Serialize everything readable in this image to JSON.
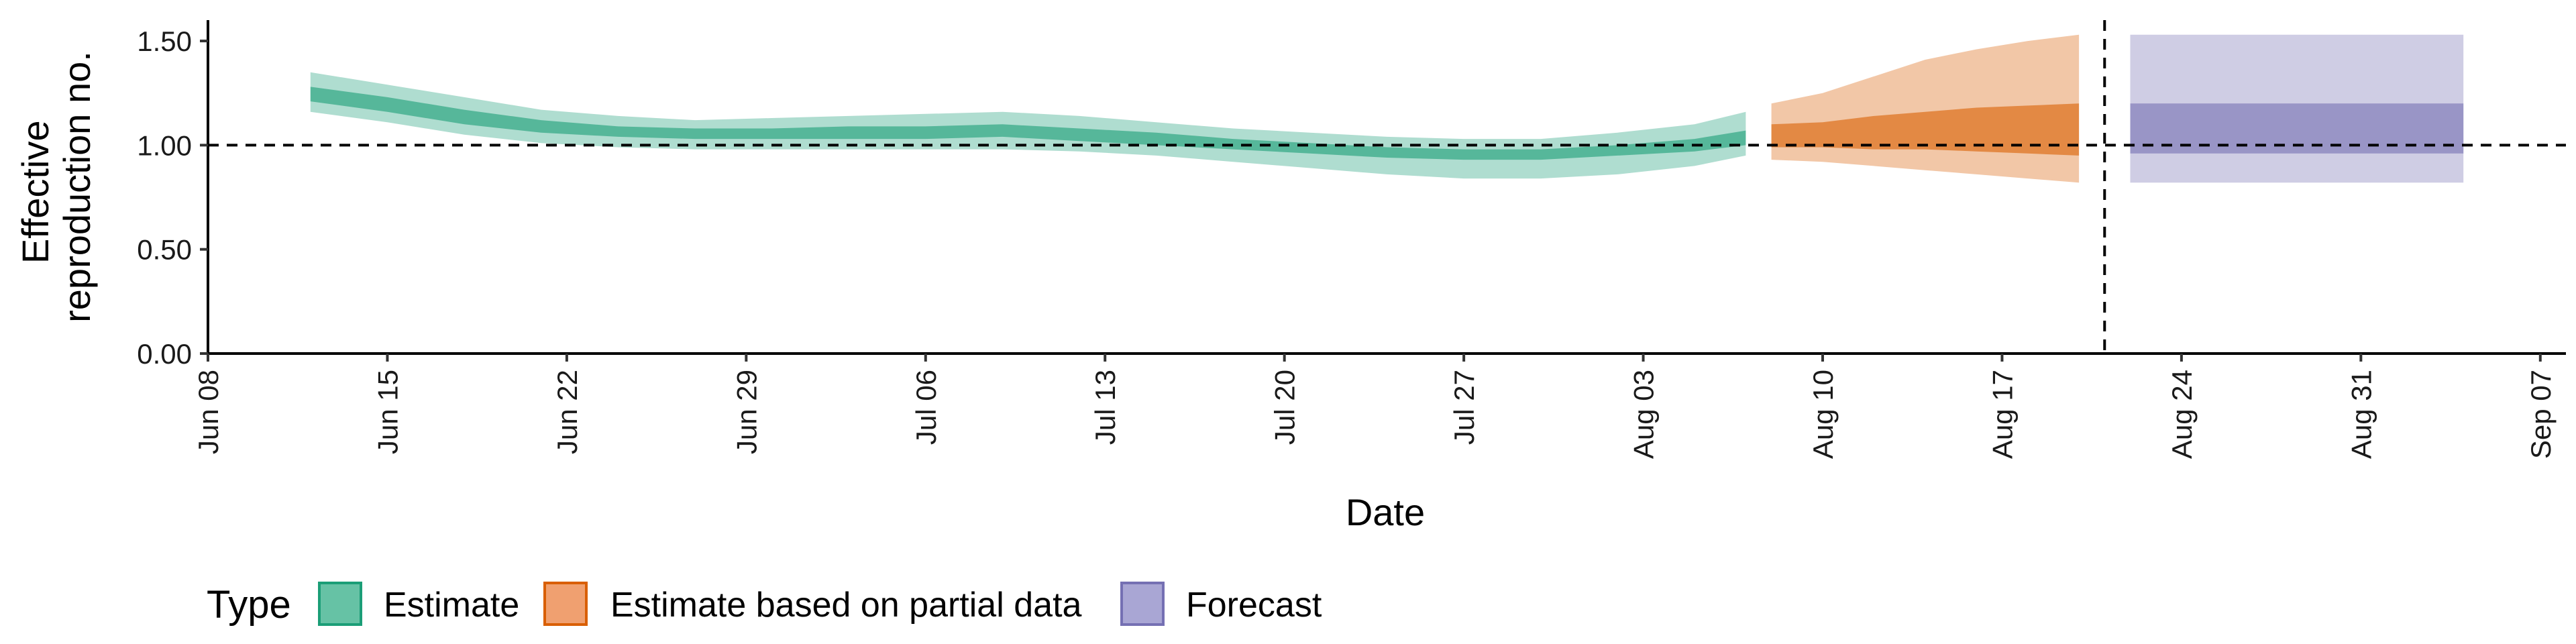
{
  "chart_data": {
    "type": "area",
    "xlabel": "Date",
    "ylabel_lines": [
      "Effective",
      "reproduction no."
    ],
    "ylim": [
      0,
      1.6
    ],
    "y_ticks": [
      0,
      0.5,
      1.0,
      1.5
    ],
    "y_tick_labels": [
      "0.00",
      "0.50",
      "1.00",
      "1.50"
    ],
    "xlim": [
      "2020-06-08",
      "2020-09-08"
    ],
    "x_ticks": [
      "2020-06-08",
      "2020-06-15",
      "2020-06-22",
      "2020-06-29",
      "2020-07-06",
      "2020-07-13",
      "2020-07-20",
      "2020-07-27",
      "2020-08-03",
      "2020-08-10",
      "2020-08-17",
      "2020-08-24",
      "2020-08-31",
      "2020-09-07"
    ],
    "x_tick_labels": [
      "Jun 08",
      "Jun 15",
      "Jun 22",
      "Jun 29",
      "Jul 06",
      "Jul 13",
      "Jul 20",
      "Jul 27",
      "Aug 03",
      "Aug 10",
      "Aug 17",
      "Aug 24",
      "Aug 31",
      "Sep 07"
    ],
    "reference_line_y": 1.0,
    "reference_line_x": "2020-08-21",
    "legend": {
      "title": "Type",
      "position": "bottom",
      "items": [
        {
          "label": "Estimate",
          "fill": "#66c2a5",
          "stroke": "#1b9e77"
        },
        {
          "label": "Estimate based on partial data",
          "fill": "#f0a070",
          "stroke": "#d95f02"
        },
        {
          "label": "Forecast",
          "fill": "#a9a6d4",
          "stroke": "#7570b3"
        }
      ]
    },
    "series": [
      {
        "name": "Estimate",
        "color": "#1b9e77",
        "x": [
          "2020-06-12",
          "2020-06-15",
          "2020-06-18",
          "2020-06-21",
          "2020-06-24",
          "2020-06-27",
          "2020-06-30",
          "2020-07-03",
          "2020-07-06",
          "2020-07-09",
          "2020-07-12",
          "2020-07-15",
          "2020-07-18",
          "2020-07-21",
          "2020-07-24",
          "2020-07-27",
          "2020-07-30",
          "2020-08-02",
          "2020-08-05",
          "2020-08-07"
        ],
        "lower90": [
          1.16,
          1.11,
          1.05,
          1.01,
          0.99,
          0.98,
          0.98,
          0.98,
          0.98,
          0.98,
          0.97,
          0.95,
          0.92,
          0.89,
          0.86,
          0.84,
          0.84,
          0.86,
          0.9,
          0.95
        ],
        "lower50": [
          1.21,
          1.16,
          1.1,
          1.06,
          1.04,
          1.03,
          1.03,
          1.03,
          1.03,
          1.04,
          1.02,
          1.0,
          0.98,
          0.96,
          0.94,
          0.93,
          0.93,
          0.95,
          0.97,
          1.0
        ],
        "upper50": [
          1.28,
          1.23,
          1.17,
          1.12,
          1.09,
          1.08,
          1.08,
          1.09,
          1.09,
          1.1,
          1.08,
          1.06,
          1.03,
          1.01,
          0.99,
          0.98,
          0.98,
          1.0,
          1.03,
          1.07
        ],
        "upper90": [
          1.35,
          1.29,
          1.23,
          1.17,
          1.14,
          1.12,
          1.13,
          1.14,
          1.15,
          1.16,
          1.14,
          1.11,
          1.08,
          1.06,
          1.04,
          1.03,
          1.03,
          1.06,
          1.1,
          1.16
        ]
      },
      {
        "name": "Estimate based on partial data",
        "color": "#d95f02",
        "x": [
          "2020-08-08",
          "2020-08-10",
          "2020-08-12",
          "2020-08-14",
          "2020-08-16",
          "2020-08-18",
          "2020-08-20"
        ],
        "lower90": [
          0.93,
          0.92,
          0.9,
          0.88,
          0.86,
          0.84,
          0.82
        ],
        "lower50": [
          0.99,
          0.99,
          0.98,
          0.98,
          0.97,
          0.96,
          0.95
        ],
        "upper50": [
          1.1,
          1.11,
          1.14,
          1.16,
          1.18,
          1.19,
          1.2
        ],
        "upper90": [
          1.2,
          1.25,
          1.33,
          1.41,
          1.46,
          1.5,
          1.53
        ]
      },
      {
        "name": "Forecast",
        "color": "#7570b3",
        "x": [
          "2020-08-22",
          "2020-09-04"
        ],
        "lower90": [
          0.82,
          0.82
        ],
        "lower50": [
          0.96,
          0.96
        ],
        "upper50": [
          1.2,
          1.2
        ],
        "upper90": [
          1.53,
          1.53
        ]
      }
    ]
  }
}
